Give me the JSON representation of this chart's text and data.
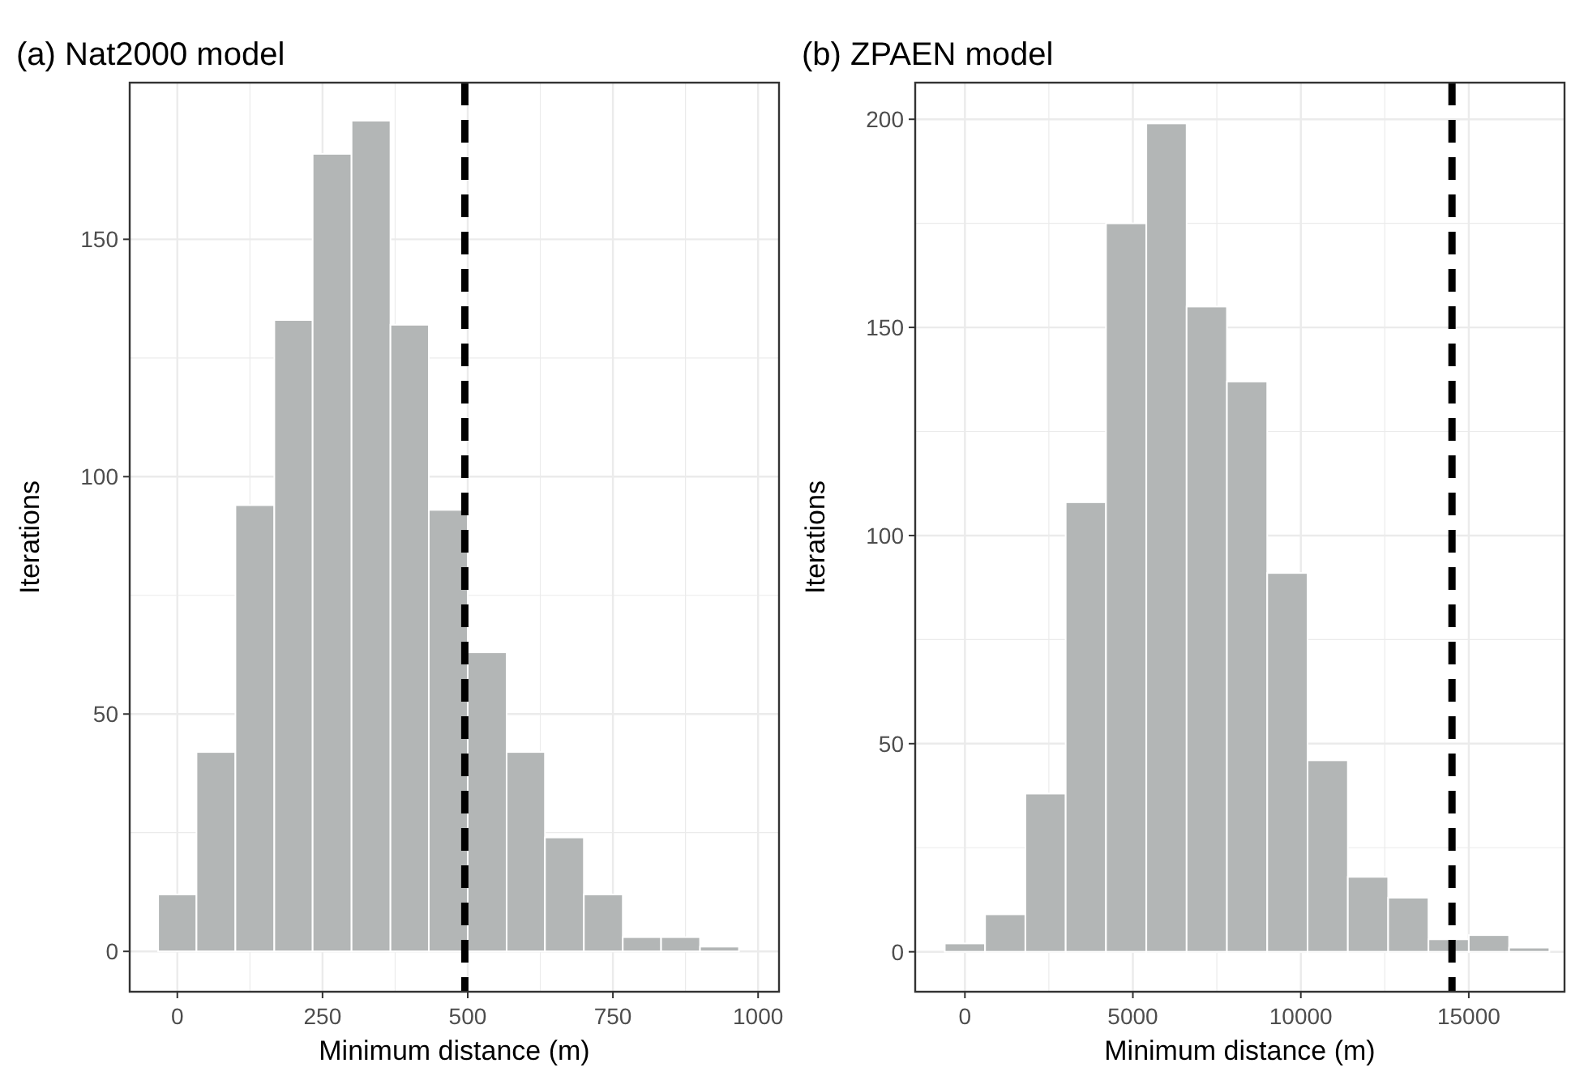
{
  "chart_data": [
    {
      "type": "histogram",
      "title": "(a) Nat2000 model",
      "xlabel": "Minimum distance (m)",
      "ylabel": "Iterations",
      "color": "#b3b6b6",
      "bins": [
        -33,
        33,
        100,
        167,
        233,
        300,
        367,
        433,
        500,
        567,
        633,
        700,
        767,
        833,
        900,
        967
      ],
      "values": [
        12,
        42,
        94,
        133,
        168,
        175,
        132,
        93,
        63,
        42,
        24,
        12,
        3,
        3,
        1
      ],
      "xlim": [
        -82,
        1036
      ],
      "xticks": [
        0,
        250,
        500,
        750,
        1000
      ],
      "ylim": [
        -8.5,
        183
      ],
      "yticks": [
        0,
        50,
        100,
        150
      ],
      "grid": true,
      "ref_lines": [
        {
          "axis": "x",
          "value": 495,
          "color": "#000000",
          "line_style": "dashed"
        }
      ]
    },
    {
      "type": "histogram",
      "title": "(b) ZPAEN model",
      "xlabel": "Minimum distance (m)",
      "ylabel": "Iterations",
      "color": "#b3b6b6",
      "bins": [
        -600,
        600,
        1800,
        3000,
        4200,
        5400,
        6600,
        7800,
        9000,
        10200,
        11400,
        12600,
        13800,
        15000,
        16200,
        17400
      ],
      "values": [
        2,
        9,
        38,
        108,
        175,
        199,
        155,
        137,
        91,
        46,
        18,
        13,
        3,
        4,
        1
      ],
      "xlim": [
        -1480,
        17850
      ],
      "xticks": [
        0,
        5000,
        10000,
        15000
      ],
      "ylim": [
        -9.6,
        208.8
      ],
      "yticks": [
        0,
        50,
        100,
        150,
        200
      ],
      "grid": true,
      "ref_lines": [
        {
          "axis": "x",
          "value": 14500,
          "color": "#000000",
          "line_style": "dashed"
        }
      ]
    }
  ]
}
